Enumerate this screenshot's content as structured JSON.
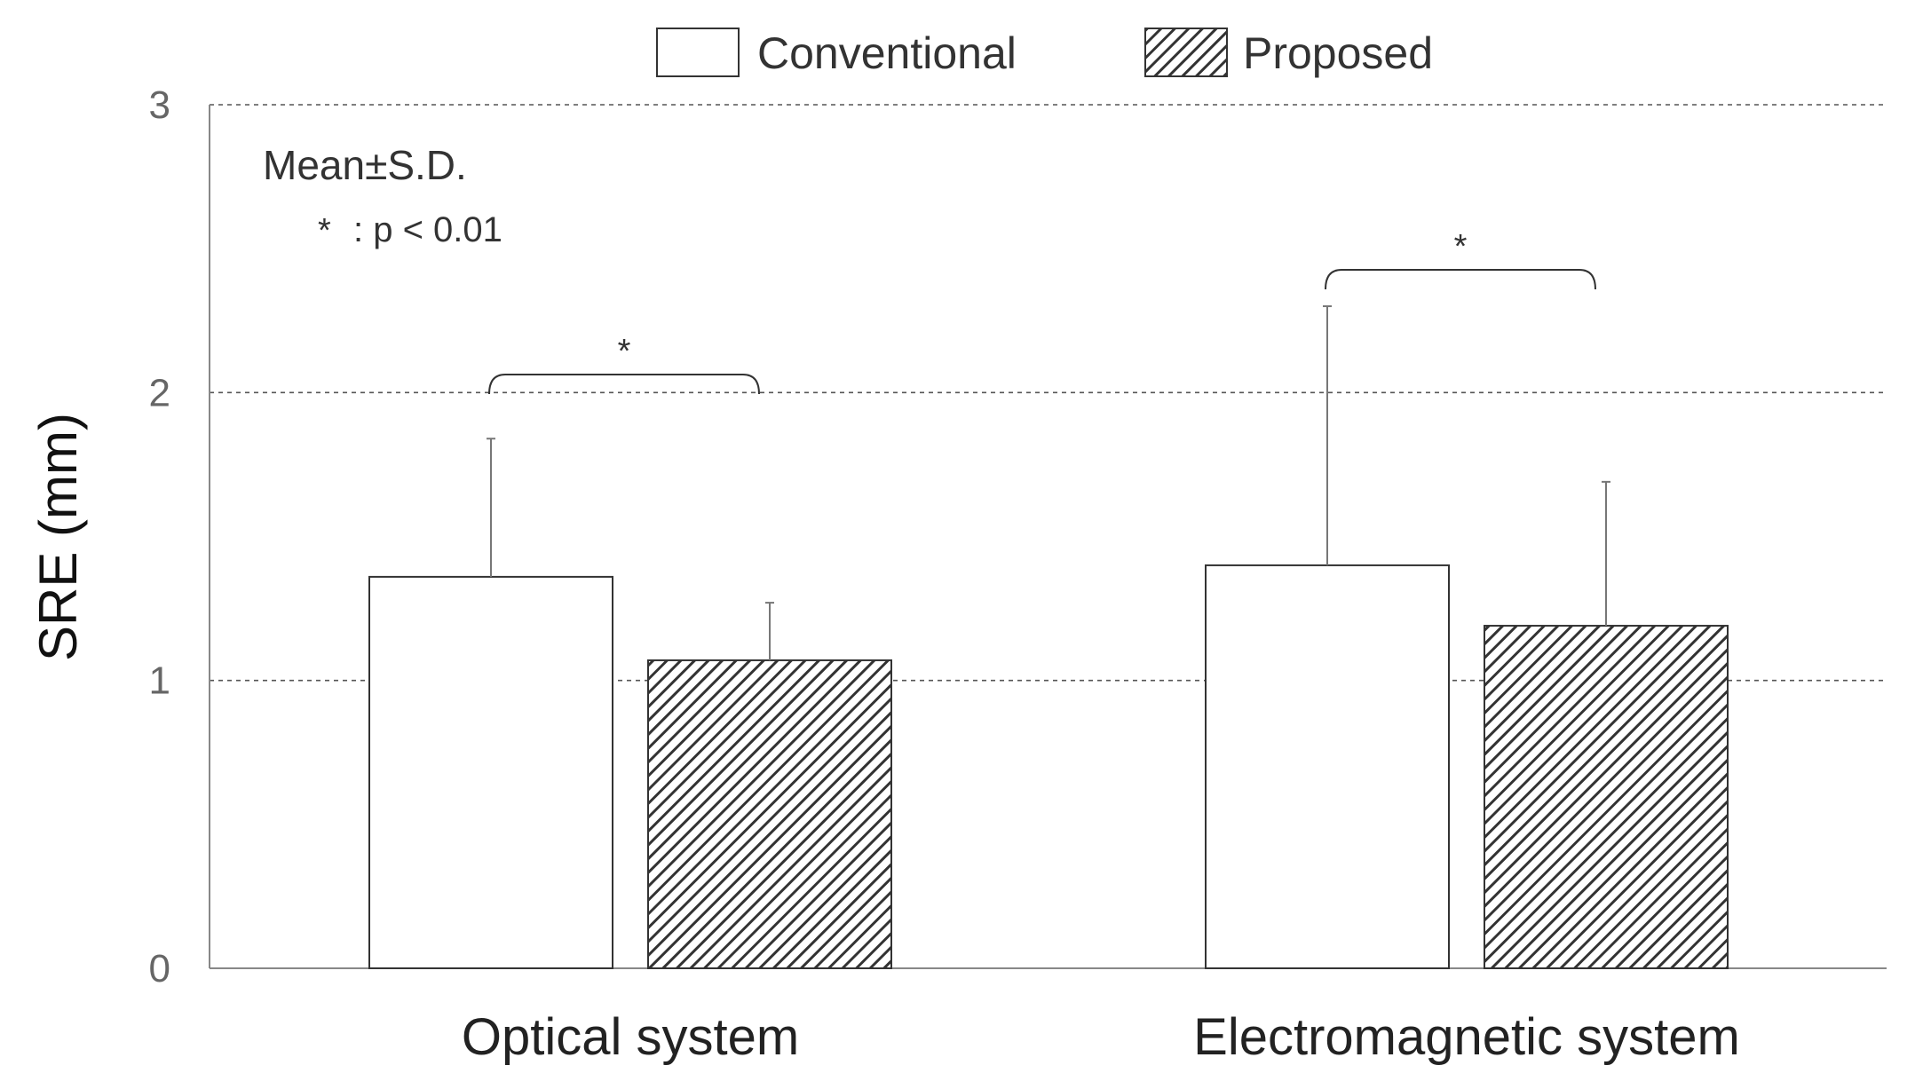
{
  "chart_data": {
    "type": "bar",
    "categories": [
      "Optical system",
      "Electromagnetic system"
    ],
    "series": [
      {
        "name": "Conventional",
        "values": [
          1.36,
          1.4
        ],
        "sd": [
          0.48,
          0.9
        ],
        "fill": "#ffffff",
        "pattern": "none"
      },
      {
        "name": "Proposed",
        "values": [
          1.07,
          1.19
        ],
        "sd": [
          0.2,
          0.5
        ],
        "fill": "#333333",
        "pattern": "diagonal-hatch"
      }
    ],
    "xlabel": "",
    "ylabel": "SRE (mm)",
    "ylim": [
      0,
      3
    ],
    "yticks": [
      "0",
      "1",
      "2",
      "3"
    ],
    "grid": "dashed-horizontal",
    "legend_position": "top-center",
    "annotations": {
      "stats_line1": "Mean±S.D.",
      "stats_line2_star": "*",
      "stats_line2_text": ": p < 0.01",
      "significance": [
        {
          "category": "Optical system",
          "label": "*"
        },
        {
          "category": "Electromagnetic system",
          "label": "*"
        }
      ]
    }
  }
}
